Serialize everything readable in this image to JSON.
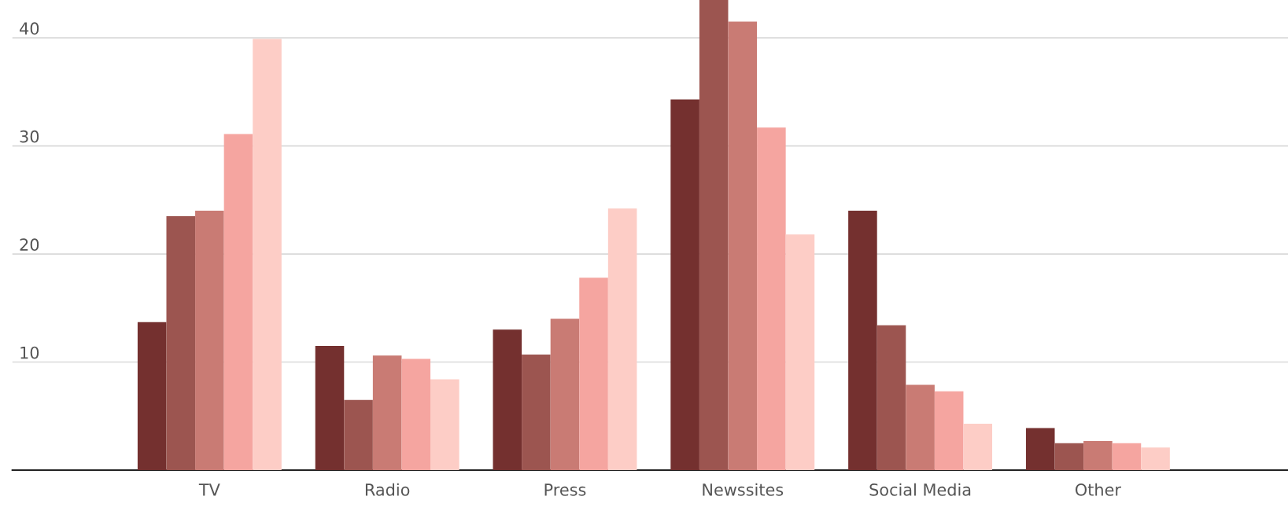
{
  "chart_data": {
    "type": "bar",
    "categories": [
      "TV",
      "Radio",
      "Press",
      "Newssites",
      "Social Media",
      "Other"
    ],
    "series": [
      {
        "color": "#74302f",
        "values": [
          13.7,
          11.5,
          13.0,
          34.3,
          24.0,
          3.9
        ]
      },
      {
        "color": "#9c5550",
        "values": [
          23.5,
          6.5,
          10.7,
          43.5,
          13.4,
          2.5
        ]
      },
      {
        "color": "#c97b74",
        "values": [
          24.0,
          10.6,
          14.0,
          41.5,
          7.9,
          2.7
        ]
      },
      {
        "color": "#f5a5a0",
        "values": [
          31.1,
          10.3,
          17.8,
          31.7,
          7.3,
          2.5
        ]
      },
      {
        "color": "#fdcdc6",
        "values": [
          39.9,
          8.4,
          24.2,
          21.8,
          4.3,
          2.1
        ]
      }
    ],
    "ylim": [
      0,
      43.5
    ],
    "yticks": [
      10,
      20,
      30,
      40
    ],
    "grid": "y"
  }
}
